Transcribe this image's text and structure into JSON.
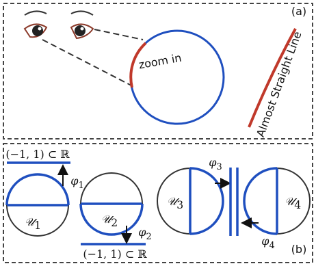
{
  "panel_a": {
    "label": "(a)",
    "zoom_text": "zoom in",
    "curve_label": "Almost Straight Line"
  },
  "panel_b": {
    "label": "(b)",
    "charts": [
      {
        "set": "𝒰",
        "index": "1",
        "map": "φ",
        "map_index": "1",
        "interval": "(−1, 1) ⊂ ℝ"
      },
      {
        "set": "𝒰",
        "index": "2",
        "map": "φ",
        "map_index": "2",
        "interval": "(−1, 1) ⊂ ℝ"
      },
      {
        "set": "𝒰",
        "index": "3",
        "map": "φ",
        "map_index": "3"
      },
      {
        "set": "𝒰",
        "index": "4",
        "map": "φ",
        "map_index": "4"
      }
    ]
  }
}
